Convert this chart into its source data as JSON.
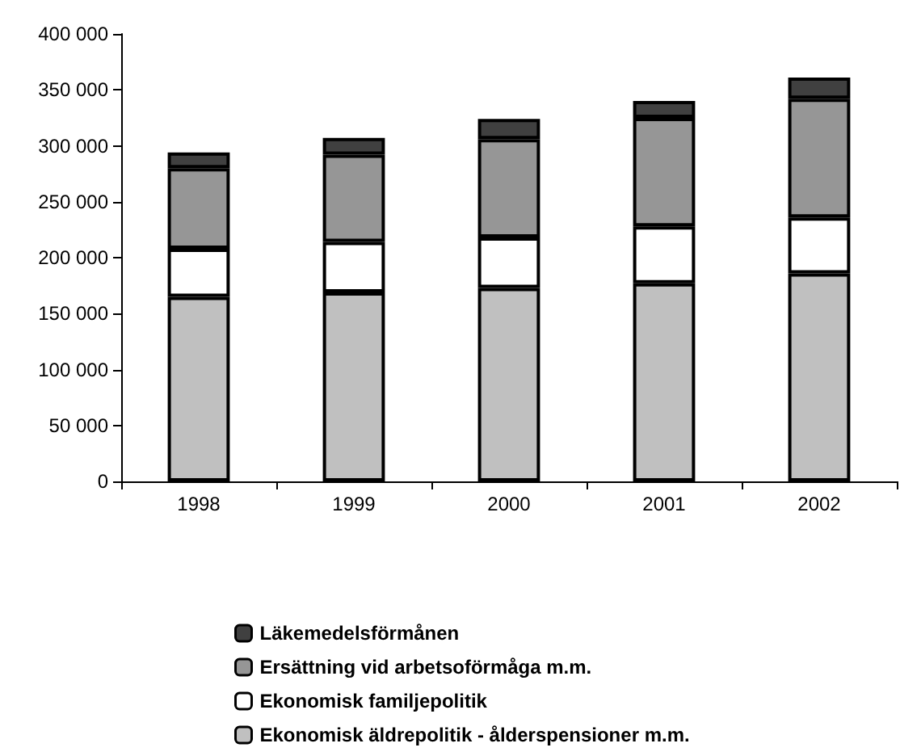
{
  "chart_data": {
    "type": "bar",
    "stacked": true,
    "categories": [
      "1998",
      "1999",
      "2000",
      "2001",
      "2002"
    ],
    "series": [
      {
        "name": "Ekonomisk äldrepolitik - ålderspensioner m.m.",
        "color": "#c0c0c0",
        "values": [
          165000,
          169000,
          173000,
          177000,
          186000
        ]
      },
      {
        "name": "Ekonomisk familjepolitik",
        "color": "#ffffff",
        "values": [
          43000,
          45000,
          45000,
          51000,
          50000
        ]
      },
      {
        "name": "Ersättning vid arbetsoförmåga m.m.",
        "color": "#969696",
        "values": [
          72000,
          78000,
          88000,
          97000,
          106000
        ]
      },
      {
        "name": "Läkemedelsförmånen",
        "color": "#404040",
        "values": [
          14000,
          15000,
          18000,
          15000,
          19000
        ]
      }
    ],
    "ylim": [
      0,
      400000
    ],
    "yticks": [
      0,
      50000,
      100000,
      150000,
      200000,
      250000,
      300000,
      350000,
      400000
    ],
    "legend": "bottom",
    "grid": false
  }
}
